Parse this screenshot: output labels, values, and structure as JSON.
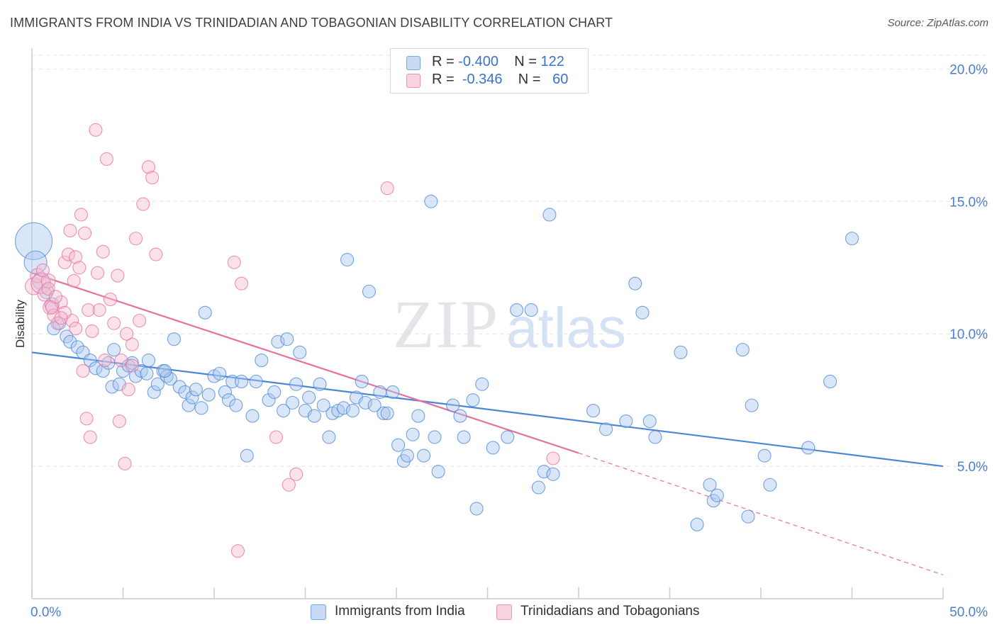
{
  "header": {
    "title": "IMMIGRANTS FROM INDIA VS TRINIDADIAN AND TOBAGONIAN DISABILITY CORRELATION CHART",
    "source": "Source: ZipAtlas.com"
  },
  "watermark": {
    "part1": "ZIP",
    "part2": "atlas"
  },
  "legend": {
    "rows": [
      {
        "r_label": "R =",
        "r_value": "-0.400",
        "n_label": "N =",
        "n_value": "122",
        "color": "#aac8ee"
      },
      {
        "r_label": "R =",
        "r_value": "-0.346",
        "n_label": "N =",
        "n_value": "60",
        "color": "#f5bcd0"
      }
    ]
  },
  "bottom_legend": {
    "items": [
      {
        "label": "Immigrants from India",
        "color": "#aac8ee"
      },
      {
        "label": "Trinidadians and Tobagonians",
        "color": "#f5bcd0"
      }
    ]
  },
  "chart_data": {
    "type": "scatter",
    "title": "IMMIGRANTS FROM INDIA VS TRINIDADIAN AND TOBAGONIAN DISABILITY CORRELATION CHART",
    "xlabel": "",
    "ylabel": "Disability",
    "xlim": [
      0,
      50
    ],
    "ylim": [
      0,
      21
    ],
    "x_tick_labels": [
      "0.0%",
      "50.0%"
    ],
    "y_ticks": [
      5,
      10,
      15,
      20
    ],
    "y_tick_labels": [
      "5.0%",
      "10.0%",
      "15.0%",
      "20.0%"
    ],
    "grid": true,
    "legend_position": "top-center",
    "series": [
      {
        "name": "Immigrants from India",
        "color": "#4a86d8",
        "fill": "#aac8ee",
        "trend": {
          "x": [
            0,
            50
          ],
          "y": [
            9.3,
            5.0
          ]
        },
        "points": [
          [
            0.1,
            13.5,
            26
          ],
          [
            0.2,
            12.7,
            16
          ],
          [
            0.5,
            12.0,
            12
          ],
          [
            0.8,
            11.6,
            10
          ],
          [
            1.1,
            11.1,
            10
          ],
          [
            1.2,
            10.2,
            9
          ],
          [
            1.5,
            10.4,
            9
          ],
          [
            1.9,
            9.9,
            9
          ],
          [
            2.1,
            9.7,
            9
          ],
          [
            2.5,
            9.5,
            9
          ],
          [
            2.8,
            9.3,
            9
          ],
          [
            3.2,
            9.0,
            9
          ],
          [
            3.5,
            8.7,
            9
          ],
          [
            3.9,
            8.6,
            9
          ],
          [
            4.2,
            8.9,
            9
          ],
          [
            4.4,
            8.0,
            9
          ],
          [
            4.5,
            9.4,
            9
          ],
          [
            4.8,
            8.1,
            9
          ],
          [
            5.0,
            8.6,
            9
          ],
          [
            5.3,
            8.8,
            9
          ],
          [
            5.5,
            8.9,
            9
          ],
          [
            5.7,
            8.4,
            9
          ],
          [
            6.0,
            8.6,
            9
          ],
          [
            6.3,
            8.5,
            9
          ],
          [
            6.4,
            9.0,
            9
          ],
          [
            6.7,
            7.8,
            9
          ],
          [
            6.9,
            8.1,
            9
          ],
          [
            7.2,
            8.6,
            9
          ],
          [
            7.4,
            8.4,
            9
          ],
          [
            7.6,
            8.3,
            9
          ],
          [
            7.8,
            9.8,
            9
          ],
          [
            8.1,
            8.0,
            9
          ],
          [
            8.4,
            7.8,
            9
          ],
          [
            8.6,
            7.3,
            9
          ],
          [
            8.8,
            7.6,
            9
          ],
          [
            9.0,
            7.9,
            9
          ],
          [
            9.3,
            7.2,
            9
          ],
          [
            9.5,
            10.8,
            9
          ],
          [
            9.7,
            7.7,
            9
          ],
          [
            10.0,
            8.4,
            9
          ],
          [
            10.3,
            8.5,
            9
          ],
          [
            10.6,
            7.8,
            9
          ],
          [
            10.8,
            7.5,
            9
          ],
          [
            11.0,
            8.2,
            9
          ],
          [
            11.2,
            7.3,
            9
          ],
          [
            11.5,
            8.2,
            9
          ],
          [
            11.8,
            5.4,
            9
          ],
          [
            12.1,
            6.9,
            9
          ],
          [
            12.3,
            8.2,
            9
          ],
          [
            12.6,
            9.0,
            9
          ],
          [
            13.0,
            7.5,
            9
          ],
          [
            13.3,
            7.8,
            9
          ],
          [
            13.5,
            9.7,
            9
          ],
          [
            13.8,
            7.1,
            9
          ],
          [
            14.0,
            9.8,
            9
          ],
          [
            14.3,
            7.4,
            9
          ],
          [
            14.5,
            8.1,
            9
          ],
          [
            14.7,
            9.3,
            9
          ],
          [
            15.0,
            7.1,
            9
          ],
          [
            15.2,
            7.6,
            9
          ],
          [
            15.5,
            6.9,
            9
          ],
          [
            15.8,
            8.1,
            9
          ],
          [
            16.0,
            7.3,
            9
          ],
          [
            16.3,
            6.1,
            9
          ],
          [
            16.5,
            7.0,
            9
          ],
          [
            16.8,
            7.1,
            9
          ],
          [
            17.1,
            7.2,
            9
          ],
          [
            17.3,
            12.8,
            9
          ],
          [
            17.6,
            7.1,
            9
          ],
          [
            17.8,
            7.6,
            9
          ],
          [
            18.1,
            8.2,
            9
          ],
          [
            18.3,
            7.4,
            9
          ],
          [
            18.5,
            11.6,
            9
          ],
          [
            18.8,
            7.3,
            9
          ],
          [
            19.1,
            7.8,
            9
          ],
          [
            19.3,
            7.0,
            9
          ],
          [
            19.5,
            7.0,
            9
          ],
          [
            19.8,
            7.8,
            9
          ],
          [
            20.1,
            5.8,
            9
          ],
          [
            20.4,
            5.2,
            9
          ],
          [
            20.6,
            5.4,
            9
          ],
          [
            20.9,
            6.2,
            9
          ],
          [
            21.2,
            6.9,
            9
          ],
          [
            21.5,
            5.4,
            9
          ],
          [
            21.9,
            15.0,
            9
          ],
          [
            22.1,
            6.1,
            9
          ],
          [
            22.3,
            4.8,
            9
          ],
          [
            23.1,
            7.3,
            9
          ],
          [
            23.5,
            6.9,
            9
          ],
          [
            23.7,
            6.1,
            9
          ],
          [
            24.2,
            7.5,
            9
          ],
          [
            24.4,
            3.4,
            9
          ],
          [
            24.7,
            8.1,
            9
          ],
          [
            25.3,
            5.7,
            9
          ],
          [
            26.1,
            6.1,
            9
          ],
          [
            26.6,
            10.9,
            9
          ],
          [
            27.4,
            10.9,
            9
          ],
          [
            27.8,
            4.2,
            9
          ],
          [
            28.1,
            4.8,
            9
          ],
          [
            28.4,
            14.5,
            9
          ],
          [
            28.6,
            4.7,
            9
          ],
          [
            30.8,
            7.1,
            9
          ],
          [
            31.5,
            6.4,
            9
          ],
          [
            32.6,
            6.7,
            9
          ],
          [
            33.1,
            11.9,
            9
          ],
          [
            33.5,
            10.8,
            9
          ],
          [
            33.9,
            6.7,
            9
          ],
          [
            34.2,
            6.1,
            9
          ],
          [
            35.6,
            9.3,
            9
          ],
          [
            36.5,
            2.8,
            9
          ],
          [
            37.2,
            4.3,
            9
          ],
          [
            37.4,
            3.7,
            9
          ],
          [
            37.6,
            3.9,
            9
          ],
          [
            39.0,
            9.4,
            9
          ],
          [
            39.3,
            3.1,
            9
          ],
          [
            39.5,
            7.3,
            9
          ],
          [
            40.2,
            5.4,
            9
          ],
          [
            40.5,
            4.3,
            9
          ],
          [
            42.6,
            5.7,
            9
          ],
          [
            43.8,
            8.2,
            9
          ],
          [
            45.0,
            13.6,
            9
          ],
          [
            7.3,
            8.6,
            9
          ]
        ]
      },
      {
        "name": "Trinidadians and Tobagonians",
        "color": "#e8709c",
        "fill": "#f5bcd0",
        "trend": {
          "x": [
            0,
            30
          ],
          "y": [
            12.3,
            5.5
          ]
        },
        "trend_extension": {
          "x": [
            30,
            50
          ],
          "y": [
            5.5,
            0.9
          ]
        },
        "points": [
          [
            0.1,
            11.8,
            12
          ],
          [
            0.3,
            12.2,
            10
          ],
          [
            0.5,
            11.9,
            14
          ],
          [
            0.7,
            11.5,
            10
          ],
          [
            0.9,
            12.0,
            10
          ],
          [
            1.0,
            11.0,
            10
          ],
          [
            1.2,
            10.7,
            9
          ],
          [
            1.4,
            10.4,
            9
          ],
          [
            1.6,
            11.2,
            9
          ],
          [
            1.8,
            12.7,
            9
          ],
          [
            2.0,
            13.0,
            9
          ],
          [
            2.2,
            10.5,
            9
          ],
          [
            2.4,
            12.9,
            9
          ],
          [
            2.6,
            12.5,
            9
          ],
          [
            2.7,
            14.5,
            9
          ],
          [
            2.9,
            13.8,
            9
          ],
          [
            3.1,
            10.9,
            9
          ],
          [
            3.3,
            10.1,
            9
          ],
          [
            3.5,
            17.7,
            9
          ],
          [
            3.7,
            10.9,
            9
          ],
          [
            3.9,
            13.1,
            9
          ],
          [
            4.1,
            16.6,
            9
          ],
          [
            4.3,
            11.3,
            9
          ],
          [
            4.5,
            10.4,
            9
          ],
          [
            4.7,
            12.2,
            9
          ],
          [
            4.9,
            9.0,
            9
          ],
          [
            5.1,
            5.1,
            9
          ],
          [
            5.3,
            7.9,
            9
          ],
          [
            5.5,
            9.6,
            9
          ],
          [
            5.7,
            13.6,
            9
          ],
          [
            5.9,
            10.5,
            9
          ],
          [
            6.1,
            14.9,
            9
          ],
          [
            6.4,
            16.3,
            9
          ],
          [
            6.6,
            15.9,
            9
          ],
          [
            6.8,
            13.0,
            9
          ],
          [
            3.2,
            6.1,
            9
          ],
          [
            3.0,
            6.8,
            9
          ],
          [
            4.8,
            6.7,
            9
          ],
          [
            2.8,
            8.6,
            9
          ],
          [
            2.4,
            10.2,
            9
          ],
          [
            1.8,
            10.8,
            9
          ],
          [
            1.6,
            10.6,
            9
          ],
          [
            0.9,
            11.7,
            9
          ],
          [
            1.1,
            11.0,
            9
          ],
          [
            11.1,
            12.7,
            9
          ],
          [
            11.5,
            11.9,
            9
          ],
          [
            13.4,
            6.1,
            9
          ],
          [
            14.1,
            4.3,
            9
          ],
          [
            14.5,
            4.7,
            9
          ],
          [
            11.3,
            1.8,
            9
          ],
          [
            19.5,
            15.5,
            9
          ],
          [
            28.6,
            5.3,
            9
          ],
          [
            2.1,
            13.9,
            9
          ],
          [
            3.6,
            12.3,
            9
          ],
          [
            0.6,
            12.4,
            9
          ],
          [
            5.2,
            10.0,
            9
          ],
          [
            5.5,
            8.8,
            9
          ],
          [
            1.3,
            11.4,
            9
          ],
          [
            2.3,
            12.0,
            9
          ],
          [
            4.0,
            9.0,
            9
          ]
        ]
      }
    ]
  }
}
